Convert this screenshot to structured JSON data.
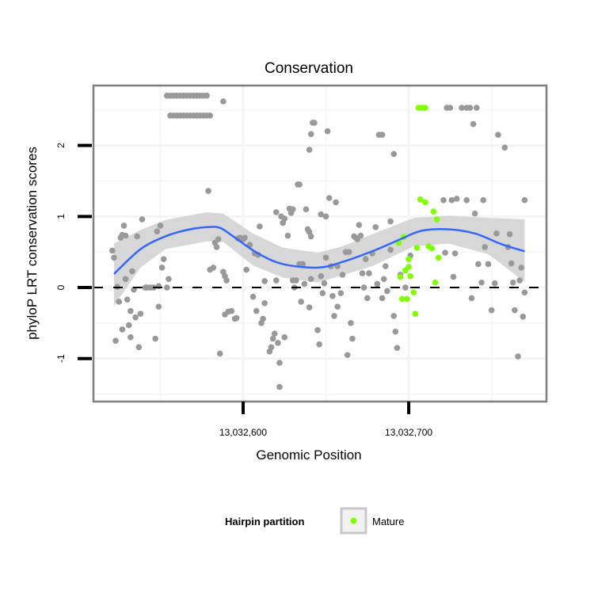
{
  "chart_data": {
    "type": "scatter",
    "title": "Conservation",
    "xlabel": "Genomic Position",
    "ylabel": "phyloP LRT conservation scores",
    "xlim": [
      13032509.6,
      13032783.2
    ],
    "ylim": [
      -1.605,
      2.843
    ],
    "x_ticks": [
      {
        "value": 13032600,
        "label": "13,032,600"
      },
      {
        "value": 13032700,
        "label": "13,032,700"
      }
    ],
    "y_ticks": [
      {
        "value": -1,
        "label": "-1"
      },
      {
        "value": 0,
        "label": "0"
      },
      {
        "value": 1,
        "label": "1"
      },
      {
        "value": 2,
        "label": "2"
      }
    ],
    "x_minor_grid": [
      13032550,
      13032650,
      13032750
    ],
    "y_minor_grid": [
      -1.5,
      -0.5,
      0.5,
      1.5,
      2.5
    ],
    "grid": true,
    "reference_line": {
      "y": 0,
      "style": "dashed"
    },
    "legend": {
      "title": "Hairpin partition",
      "placement": "bottom",
      "entries": [
        {
          "label": "Mature",
          "color": "#7fff00"
        }
      ]
    },
    "colors": {
      "other": "#999999",
      "mature": "#7fff00",
      "smooth": "#3366ff",
      "band": "#d3d3d3",
      "panel_border": "#7f7f7f",
      "grid": "#f4f4f4"
    },
    "series": [
      {
        "name": "Other",
        "color": "#999999",
        "points": [
          [
            13032521,
            0.52
          ],
          [
            13032522,
            0.42
          ],
          [
            13032523,
            -0.75
          ],
          [
            13032524,
            0.01
          ],
          [
            13032525,
            -0.2
          ],
          [
            13032526,
            0.7
          ],
          [
            13032527,
            -0.59
          ],
          [
            13032527,
            0.74
          ],
          [
            13032528,
            0.87
          ],
          [
            13032529,
            0.73
          ],
          [
            13032529,
            0.12
          ],
          [
            13032530,
            -0.17
          ],
          [
            13032531,
            -0.53
          ],
          [
            13032532,
            -0.7
          ],
          [
            13032532,
            -0.33
          ],
          [
            13032533,
            0.23
          ],
          [
            13032534,
            -0.03
          ],
          [
            13032535,
            -0.42
          ],
          [
            13032536,
            0.72
          ],
          [
            13032537,
            -0.84
          ],
          [
            13032538,
            -0.37
          ],
          [
            13032539,
            0.96
          ],
          [
            13032541,
            0.0
          ],
          [
            13032542,
            0.0
          ],
          [
            13032544,
            0.0
          ],
          [
            13032546,
            0.0
          ],
          [
            13032548,
            0.79
          ],
          [
            13032547,
            -0.72
          ],
          [
            13032549,
            0.02
          ],
          [
            13032549,
            -0.27
          ],
          [
            13032550,
            0.87
          ],
          [
            13032551,
            0.28
          ],
          [
            13032552,
            0.4
          ],
          [
            13032554,
            0.0
          ],
          [
            13032555,
            0.12
          ],
          [
            13032554,
            2.7
          ],
          [
            13032556,
            2.7
          ],
          [
            13032558,
            2.7
          ],
          [
            13032560,
            2.7
          ],
          [
            13032562,
            2.7
          ],
          [
            13032564,
            2.7
          ],
          [
            13032566,
            2.7
          ],
          [
            13032568,
            2.7
          ],
          [
            13032570,
            2.7
          ],
          [
            13032572,
            2.7
          ],
          [
            13032574,
            2.7
          ],
          [
            13032576,
            2.7
          ],
          [
            13032578,
            2.7
          ],
          [
            13032556,
            2.42
          ],
          [
            13032558,
            2.42
          ],
          [
            13032560,
            2.42
          ],
          [
            13032562,
            2.42
          ],
          [
            13032564,
            2.42
          ],
          [
            13032566,
            2.42
          ],
          [
            13032568,
            2.42
          ],
          [
            13032570,
            2.42
          ],
          [
            13032572,
            2.42
          ],
          [
            13032574,
            2.42
          ],
          [
            13032576,
            2.42
          ],
          [
            13032578,
            2.42
          ],
          [
            13032580,
            2.42
          ],
          [
            13032588,
            2.62
          ],
          [
            13032579,
            1.36
          ],
          [
            13032580,
            0.25
          ],
          [
            13032582,
            0.28
          ],
          [
            13032583,
            0.63
          ],
          [
            13032584,
            0.57
          ],
          [
            13032585,
            0.68
          ],
          [
            13032588,
            0.22
          ],
          [
            13032589,
            0.16
          ],
          [
            13032590,
            0.1
          ],
          [
            13032586,
            -0.93
          ],
          [
            13032589,
            -0.38
          ],
          [
            13032591,
            -0.34
          ],
          [
            13032593,
            -0.33
          ],
          [
            13032595,
            -0.44
          ],
          [
            13032596,
            -0.43
          ],
          [
            13032597,
            0.69
          ],
          [
            13032598,
            0.7
          ],
          [
            13032600,
            0.68
          ],
          [
            13032601,
            0.7
          ],
          [
            13032602,
            0.25
          ],
          [
            13032604,
            0.6
          ],
          [
            13032606,
            -0.13
          ],
          [
            13032607,
            0.48
          ],
          [
            13032608,
            -0.33
          ],
          [
            13032609,
            0.46
          ],
          [
            13032610,
            0.86
          ],
          [
            13032611,
            -0.5
          ],
          [
            13032612,
            -0.44
          ],
          [
            13032613,
            -0.22
          ],
          [
            13032613,
            0.09
          ],
          [
            13032616,
            -0.9
          ],
          [
            13032617,
            -0.84
          ],
          [
            13032618,
            -0.72
          ],
          [
            13032619,
            -0.65
          ],
          [
            13032620,
            0.1
          ],
          [
            13032620,
            1.06
          ],
          [
            13032621,
            -0.78
          ],
          [
            13032622,
            -1.06
          ],
          [
            13032622,
            -1.4
          ],
          [
            13032623,
            1.0
          ],
          [
            13032624,
            0.91
          ],
          [
            13032625,
            -0.7
          ],
          [
            13032625,
            0.97
          ],
          [
            13032627,
            0.73
          ],
          [
            13032628,
            1.11
          ],
          [
            13032629,
            1.05
          ],
          [
            13032630,
            1.1
          ],
          [
            13032630,
            0.1
          ],
          [
            13032631,
            0.0
          ],
          [
            13032632,
            0.1
          ],
          [
            13032633,
            1.45
          ],
          [
            13032634,
            1.45
          ],
          [
            13032634,
            0.33
          ],
          [
            13032635,
            -0.2
          ],
          [
            13032636,
            0.33
          ],
          [
            13032637,
            0.05
          ],
          [
            13032638,
            1.1
          ],
          [
            13032639,
            0.82
          ],
          [
            13032640,
            0.78
          ],
          [
            13032641,
            0.72
          ],
          [
            13032640,
            -0.28
          ],
          [
            13032641,
            0.12
          ],
          [
            13032642,
            2.32
          ],
          [
            13032643,
            2.32
          ],
          [
            13032641,
            2.16
          ],
          [
            13032640,
            1.94
          ],
          [
            13032645,
            -0.6
          ],
          [
            13032646,
            -0.8
          ],
          [
            13032647,
            1.03
          ],
          [
            13032647,
            0.16
          ],
          [
            13032648,
            -0.08
          ],
          [
            13032649,
            0.06
          ],
          [
            13032650,
            1.0
          ],
          [
            13032650,
            0.42
          ],
          [
            13032651,
            2.2
          ],
          [
            13032652,
            1.26
          ],
          [
            13032653,
            0.3
          ],
          [
            13032654,
            -0.12
          ],
          [
            13032655,
            -0.4
          ],
          [
            13032656,
            1.2
          ],
          [
            13032657,
            0.3
          ],
          [
            13032657,
            -0.27
          ],
          [
            13032659,
            -0.08
          ],
          [
            13032660,
            0.18
          ],
          [
            13032662,
            0.5
          ],
          [
            13032663,
            -0.95
          ],
          [
            13032664,
            0.5
          ],
          [
            13032665,
            -0.5
          ],
          [
            13032666,
            -0.72
          ],
          [
            13032667,
            0.72
          ],
          [
            13032668,
            0.7
          ],
          [
            13032669,
            0.68
          ],
          [
            13032670,
            0.88
          ],
          [
            13032671,
            0.73
          ],
          [
            13032672,
            0.2
          ],
          [
            13032673,
            0.0
          ],
          [
            13032674,
            0.4
          ],
          [
            13032675,
            -0.15
          ],
          [
            13032676,
            0.2
          ],
          [
            13032678,
            0.48
          ],
          [
            13032680,
            0.85
          ],
          [
            13032681,
            0.05
          ],
          [
            13032682,
            2.15
          ],
          [
            13032684,
            2.15
          ],
          [
            13032684,
            -0.15
          ],
          [
            13032685,
            0.12
          ],
          [
            13032686,
            0.3
          ],
          [
            13032687,
            -0.05
          ],
          [
            13032689,
            0.93
          ],
          [
            13032689,
            0.53
          ],
          [
            13032691,
            1.88
          ],
          [
            13032691,
            -0.4
          ],
          [
            13032692,
            -0.62
          ],
          [
            13032693,
            -0.85
          ],
          [
            13032695,
            0.18
          ],
          [
            13032698,
            0.0
          ],
          [
            13032701,
            0.45
          ],
          [
            13032723,
            2.53
          ],
          [
            13032725,
            2.53
          ],
          [
            13032732,
            2.53
          ],
          [
            13032735,
            2.53
          ],
          [
            13032737,
            2.53
          ],
          [
            13032741,
            2.53
          ],
          [
            13032739,
            2.3
          ],
          [
            13032754,
            2.15
          ],
          [
            13032758,
            1.97
          ],
          [
            13032721,
            1.23
          ],
          [
            13032726,
            1.23
          ],
          [
            13032729,
            1.25
          ],
          [
            13032735,
            1.23
          ],
          [
            13032745,
            1.23
          ],
          [
            13032770,
            1.23
          ],
          [
            13032740,
            1.04
          ],
          [
            13032753,
            0.76
          ],
          [
            13032746,
            0.57
          ],
          [
            13032760,
            0.57
          ],
          [
            13032761,
            0.75
          ],
          [
            13032722,
            0.49
          ],
          [
            13032728,
            0.48
          ],
          [
            13032742,
            0.33
          ],
          [
            13032748,
            0.33
          ],
          [
            13032744,
            0.07
          ],
          [
            13032752,
            0.06
          ],
          [
            13032763,
            0.07
          ],
          [
            13032762,
            0.34
          ],
          [
            13032767,
            0.1
          ],
          [
            13032768,
            0.28
          ],
          [
            13032770,
            -0.07
          ],
          [
            13032738,
            -0.15
          ],
          [
            13032750,
            -0.32
          ],
          [
            13032764,
            -0.32
          ],
          [
            13032769,
            -0.41
          ],
          [
            13032766,
            -0.97
          ],
          [
            13032727,
            0.15
          ]
        ]
      },
      {
        "name": "Mature",
        "color": "#7fff00",
        "points": [
          [
            13032706,
            2.53
          ],
          [
            13032708,
            2.53
          ],
          [
            13032710,
            2.53
          ],
          [
            13032707,
            1.24
          ],
          [
            13032710,
            1.2
          ],
          [
            13032715,
            1.07
          ],
          [
            13032717,
            0.96
          ],
          [
            13032697,
            0.71
          ],
          [
            13032694,
            0.63
          ],
          [
            13032705,
            0.56
          ],
          [
            13032712,
            0.58
          ],
          [
            13032714,
            0.55
          ],
          [
            13032700,
            0.4
          ],
          [
            13032718,
            0.42
          ],
          [
            13032700,
            0.29
          ],
          [
            13032698,
            0.24
          ],
          [
            13032695,
            0.15
          ],
          [
            13032701,
            0.16
          ],
          [
            13032716,
            0.07
          ],
          [
            13032703,
            -0.07
          ],
          [
            13032696,
            -0.16
          ],
          [
            13032699,
            -0.16
          ],
          [
            13032704,
            -0.37
          ]
        ]
      }
    ],
    "smooth": {
      "x": [
        13032522,
        13032538,
        13032553,
        13032566,
        13032578,
        13032586,
        13032594,
        13032609,
        13032624,
        13032645,
        13032660,
        13032679,
        13032696,
        13032708,
        13032724,
        13032740,
        13032756,
        13032770
      ],
      "y": [
        0.19,
        0.54,
        0.72,
        0.81,
        0.85,
        0.84,
        0.72,
        0.48,
        0.33,
        0.28,
        0.36,
        0.52,
        0.69,
        0.8,
        0.82,
        0.76,
        0.61,
        0.51
      ],
      "band_x": [
        13032522,
        13032538,
        13032553,
        13032578,
        13032588,
        13032606,
        13032624,
        13032645,
        13032660,
        13032679,
        13032703,
        13032724,
        13032748,
        13032770
      ],
      "band_upper": [
        0.62,
        0.81,
        0.95,
        1.06,
        1.04,
        0.76,
        0.56,
        0.49,
        0.58,
        0.76,
        0.98,
        1.01,
        0.98,
        0.96
      ],
      "band_lower": [
        -0.26,
        0.28,
        0.54,
        0.65,
        0.64,
        0.31,
        0.14,
        0.07,
        0.17,
        0.31,
        0.58,
        0.62,
        0.47,
        0.08
      ]
    }
  }
}
